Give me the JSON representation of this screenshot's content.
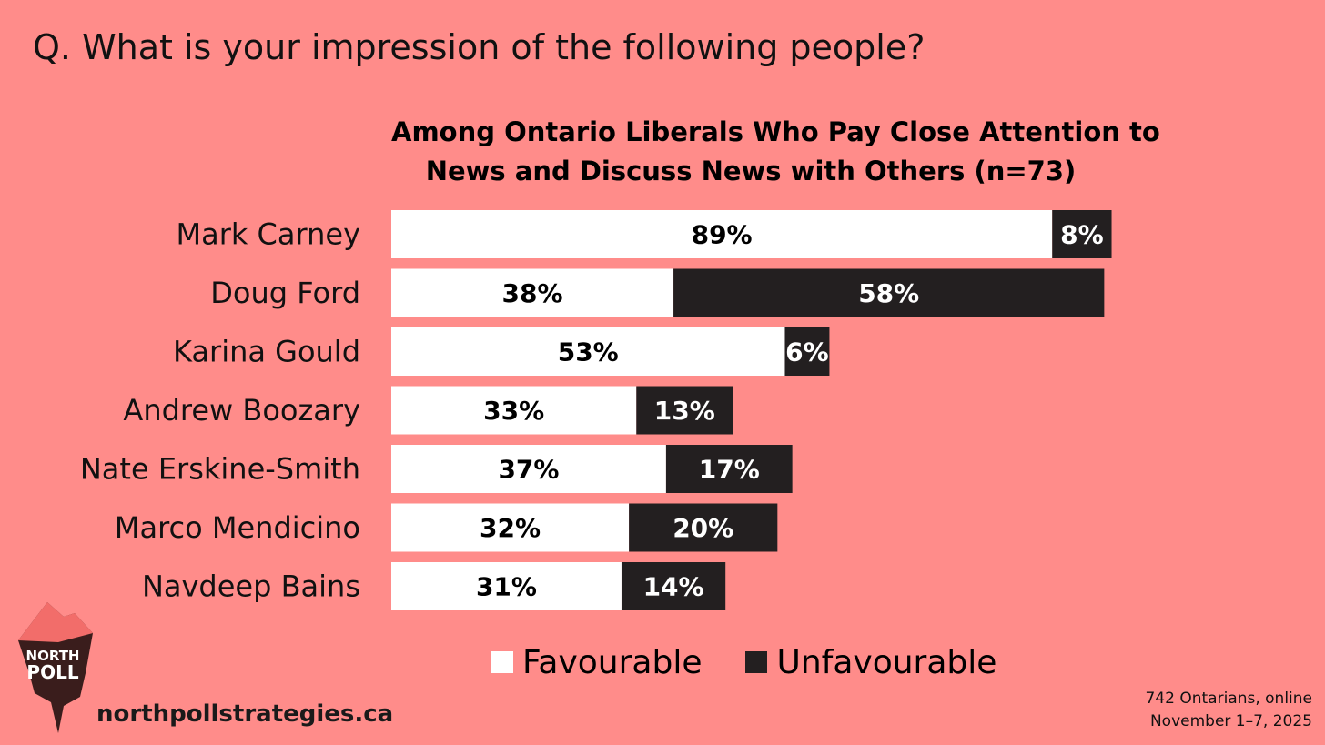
{
  "question": "Q. What is your impression of the following people?",
  "chart_data": {
    "type": "bar",
    "orientation": "horizontal",
    "stacked": true,
    "title_lines": [
      "Among Ontario Liberals Who Pay Close Attention to",
      "News and Discuss News with Others (n=73)"
    ],
    "categories": [
      "Mark Carney",
      "Doug Ford",
      "Karina Gould",
      "Andrew Boozary",
      "Nate Erskine-Smith",
      "Marco Mendicino",
      "Navdeep Bains"
    ],
    "series": [
      {
        "name": "Favourable",
        "color": "#FFFFFF",
        "label_color": "#000000",
        "values": [
          89,
          38,
          53,
          33,
          37,
          32,
          31
        ]
      },
      {
        "name": "Unfavourable",
        "color": "#231F20",
        "label_color": "#FFFFFF",
        "values": [
          8,
          58,
          6,
          13,
          17,
          20,
          14
        ]
      }
    ],
    "value_suffix": "%",
    "xlim": [
      0,
      100
    ],
    "grid": false,
    "legend_position": "bottom"
  },
  "logo": {
    "line1": "NORTH",
    "line2": "POLL"
  },
  "website": "northpollstrategies.ca",
  "footnote": {
    "line1": "742 Ontarians, online",
    "line2": "November 1–7, 2025"
  },
  "colors": {
    "background": "#FF8C8A",
    "favourable": "#FFFFFF",
    "unfavourable": "#231F20"
  }
}
